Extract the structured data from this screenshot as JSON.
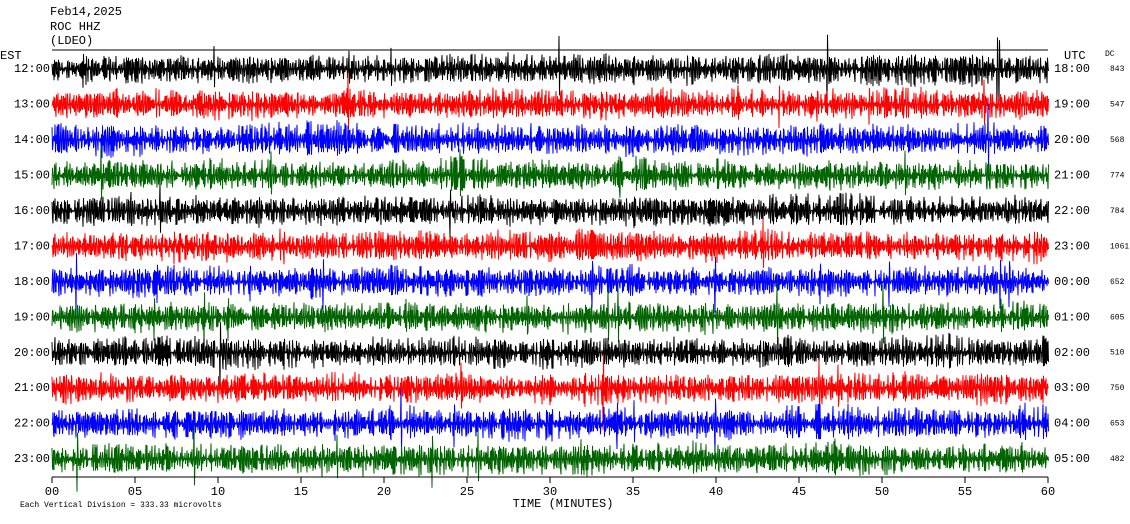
{
  "chart_data": {
    "type": "seismogram",
    "title_lines": [
      "Feb14,2025",
      "ROC HHZ",
      "(LDEO)"
    ],
    "left_axis_label": "EST",
    "right_axis_label": "UTC",
    "dc_label": "DC",
    "x_label": "TIME (MINUTES)",
    "footnote": "Each Vertical Division =  333.33 microvolts",
    "rows_left": [
      "12:00",
      "13:00",
      "14:00",
      "15:00",
      "16:00",
      "17:00",
      "18:00",
      "19:00",
      "20:00",
      "21:00",
      "22:00",
      "23:00"
    ],
    "rows_right": [
      "18:00",
      "19:00",
      "20:00",
      "21:00",
      "22:00",
      "23:00",
      "00:00",
      "01:00",
      "02:00",
      "03:00",
      "04:00",
      "05:00"
    ],
    "dc_values": [
      843,
      547,
      568,
      774,
      784,
      1061,
      652,
      605,
      510,
      750,
      653,
      482
    ],
    "trace_colors": [
      "#000000",
      "#ff0000",
      "#0000ff",
      "#006400"
    ],
    "xlim": [
      0,
      60
    ],
    "xticks": [
      {
        "value": 0,
        "label": "00"
      },
      {
        "value": 5,
        "label": "05"
      },
      10,
      15,
      20,
      25,
      30,
      35,
      40,
      45,
      50,
      55,
      60
    ]
  }
}
